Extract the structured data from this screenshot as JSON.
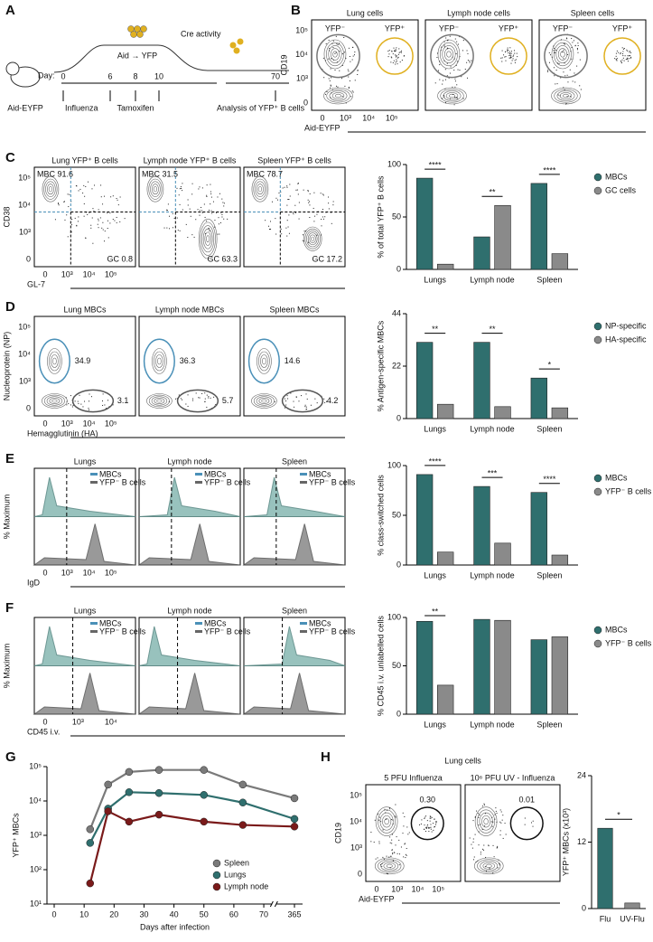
{
  "panel_labels": [
    "A",
    "B",
    "C",
    "D",
    "E",
    "F",
    "G",
    "H"
  ],
  "panel_a": {
    "mouse": "Aid-EYFP",
    "day_label": "Day:",
    "days": [
      "0",
      "6",
      "8",
      "10",
      "70"
    ],
    "events": [
      "Influenza",
      "Tamoxifen",
      "Analysis of YFP⁺ B cells"
    ],
    "cre": "Cre activity",
    "aid": "Aid → YFP"
  },
  "panel_b": {
    "y_label": "CD19",
    "x_label": "Aid-EYFP",
    "y_ticks": [
      "0",
      "10³",
      "10⁴",
      "10⁵"
    ],
    "x_ticks": [
      "0",
      "10³",
      "10⁴",
      "10⁵"
    ],
    "plots": [
      {
        "title": "Lung cells",
        "gates": [
          "YFP⁻",
          "YFP⁺"
        ]
      },
      {
        "title": "Lymph node cells",
        "gates": [
          "YFP⁻",
          "YFP⁺"
        ]
      },
      {
        "title": "Spleen cells",
        "gates": [
          "YFP⁻",
          "YFP⁺"
        ]
      }
    ]
  },
  "panel_c": {
    "y_label": "CD38",
    "x_label": "GL-7",
    "y_ticks": [
      "0",
      "10³",
      "10⁴",
      "10⁵"
    ],
    "x_ticks": [
      "0",
      "10³",
      "10⁴",
      "10⁵"
    ],
    "plots": [
      {
        "title": "Lung YFP⁺ B cells",
        "gates": [
          "MBC 91.6",
          "GC 0.8"
        ]
      },
      {
        "title": "Lymph node YFP⁺ B cells",
        "gates": [
          "MBC 31.5",
          "GC 63.3"
        ]
      },
      {
        "title": "Spleen YFP⁺ B cells",
        "gates": [
          "MBC 78.7",
          "GC 17.2"
        ]
      }
    ]
  },
  "panel_d": {
    "y_label": "Nucleoprotein (NP)",
    "x_label": "Hemagglutinin (HA)",
    "y_ticks": [
      "0",
      "10³",
      "10⁴",
      "10⁵"
    ],
    "x_ticks": [
      "0",
      "10³",
      "10⁴",
      "10⁵"
    ],
    "plots": [
      {
        "title": "Lung MBCs",
        "gates": [
          "34.9",
          "3.1"
        ]
      },
      {
        "title": "Lymph node MBCs",
        "gates": [
          "36.3",
          "5.7"
        ]
      },
      {
        "title": "Spleen MBCs",
        "gates": [
          "14.6",
          "4.2"
        ]
      }
    ]
  },
  "panel_e": {
    "y_label": "% Maximum",
    "x_label": "IgD",
    "x_ticks": [
      "0",
      "10³",
      "10⁴",
      "10⁵"
    ],
    "legend": [
      "MBCs",
      "YFP⁻ B cells"
    ],
    "plots": [
      {
        "title": "Lungs"
      },
      {
        "title": "Lymph node"
      },
      {
        "title": "Spleen"
      }
    ]
  },
  "panel_f": {
    "y_label": "% Maximum",
    "x_label": "CD45 i.v.",
    "x_ticks": [
      "0",
      "10³",
      "10⁴"
    ],
    "legend": [
      "MBCs",
      "YFP⁻ B cells"
    ],
    "plots": [
      {
        "title": "Lungs"
      },
      {
        "title": "Lymph node"
      },
      {
        "title": "Spleen"
      }
    ]
  },
  "panel_h": {
    "title": "Lung cells",
    "y_label": "CD19",
    "x_label": "Aid-EYFP",
    "y_ticks": [
      "0",
      "10³",
      "10⁴",
      "10⁵"
    ],
    "x_ticks": [
      "0",
      "10³",
      "10⁴",
      "10⁵"
    ],
    "plots": [
      {
        "title": "5 PFU Influenza",
        "gates": [
          "0.30"
        ]
      },
      {
        "title": "10⁶ PFU UV - Influenza",
        "gates": [
          "0.01"
        ]
      }
    ]
  },
  "chart_data": [
    {
      "type": "bar",
      "y_label": "% of total YFP⁺ B cells",
      "categories": [
        "Lungs",
        "Lymph node",
        "Spleen"
      ],
      "series": [
        {
          "name": "MBCs",
          "color": "#2f6f6e",
          "values": [
            87,
            31,
            82
          ]
        },
        {
          "name": "GC cells",
          "color": "#8a8a8a",
          "values": [
            5,
            61,
            15
          ]
        }
      ],
      "ylim": [
        0,
        100
      ],
      "yticks": [
        0,
        50,
        100
      ],
      "significance": [
        "****",
        "**",
        "****"
      ]
    },
    {
      "type": "bar",
      "y_label": "% Antigen-specific MBCs",
      "categories": [
        "Lungs",
        "Lymph node",
        "Spleen"
      ],
      "series": [
        {
          "name": "NP-specific",
          "color": "#2f6f6e",
          "values": [
            32,
            32,
            17
          ]
        },
        {
          "name": "HA-specific",
          "color": "#8a8a8a",
          "values": [
            6,
            5,
            4.5
          ]
        }
      ],
      "ylim": [
        0,
        44
      ],
      "yticks": [
        0,
        22,
        44
      ],
      "significance": [
        "**",
        "**",
        "*"
      ]
    },
    {
      "type": "bar",
      "y_label": "% class-switched cells",
      "categories": [
        "Lungs",
        "Lymph node",
        "Spleen"
      ],
      "series": [
        {
          "name": "MBCs",
          "color": "#2f6f6e",
          "values": [
            91,
            79,
            73
          ]
        },
        {
          "name": "YFP⁻ B cells",
          "color": "#8a8a8a",
          "values": [
            13,
            22,
            10
          ]
        }
      ],
      "ylim": [
        0,
        100
      ],
      "yticks": [
        0,
        50,
        100
      ],
      "significance": [
        "****",
        "***",
        "****"
      ]
    },
    {
      "type": "bar",
      "y_label": "% CD45 i.v. unlabelled cells",
      "categories": [
        "Lungs",
        "Lymph node",
        "Spleen"
      ],
      "series": [
        {
          "name": "MBCs",
          "color": "#2f6f6e",
          "values": [
            96,
            98,
            77
          ]
        },
        {
          "name": "YFP⁻ B cells",
          "color": "#8a8a8a",
          "values": [
            30,
            97,
            80
          ]
        }
      ],
      "ylim": [
        0,
        100
      ],
      "yticks": [
        0,
        50,
        100
      ],
      "significance": [
        "**",
        null,
        null
      ]
    },
    {
      "type": "line",
      "y_label": "YFP⁺ MBCs",
      "x_label": "Days after infection",
      "x": [
        12,
        18,
        25,
        35,
        50,
        63,
        365
      ],
      "series": [
        {
          "name": "Spleen",
          "color": "#7a7a7a",
          "values": [
            1500,
            30000,
            70000,
            80000,
            80000,
            30000,
            12000
          ]
        },
        {
          "name": "Lungs",
          "color": "#2f6f6e",
          "values": [
            600,
            6000,
            18000,
            17000,
            15000,
            9000,
            3000
          ]
        },
        {
          "name": "Lymph node",
          "color": "#7a1a1a",
          "values": [
            40,
            5000,
            2500,
            4000,
            2500,
            2000,
            1800
          ]
        }
      ],
      "log_y": true,
      "ylim": [
        10,
        100000
      ],
      "yticks": [
        {
          "value": 10,
          "label": "10¹"
        },
        {
          "value": 100,
          "label": "10²"
        },
        {
          "value": 1000,
          "label": "10³"
        },
        {
          "value": 10000,
          "label": "10⁴"
        },
        {
          "value": 100000,
          "label": "10⁵"
        }
      ],
      "xlim": [
        0,
        365
      ],
      "xticks": [
        0,
        10,
        20,
        30,
        40,
        50,
        60,
        70,
        365
      ]
    },
    {
      "type": "bar",
      "y_label": "YFP⁺ MBCs (x10³)",
      "categories": [
        "Flu",
        "UV-Flu"
      ],
      "values": [
        14.5,
        1
      ],
      "colors": [
        "#2f6f6e",
        "#8a8a8a"
      ],
      "ylim": [
        0,
        24
      ],
      "yticks": [
        0,
        12,
        24
      ],
      "significance": [
        "*"
      ]
    }
  ]
}
